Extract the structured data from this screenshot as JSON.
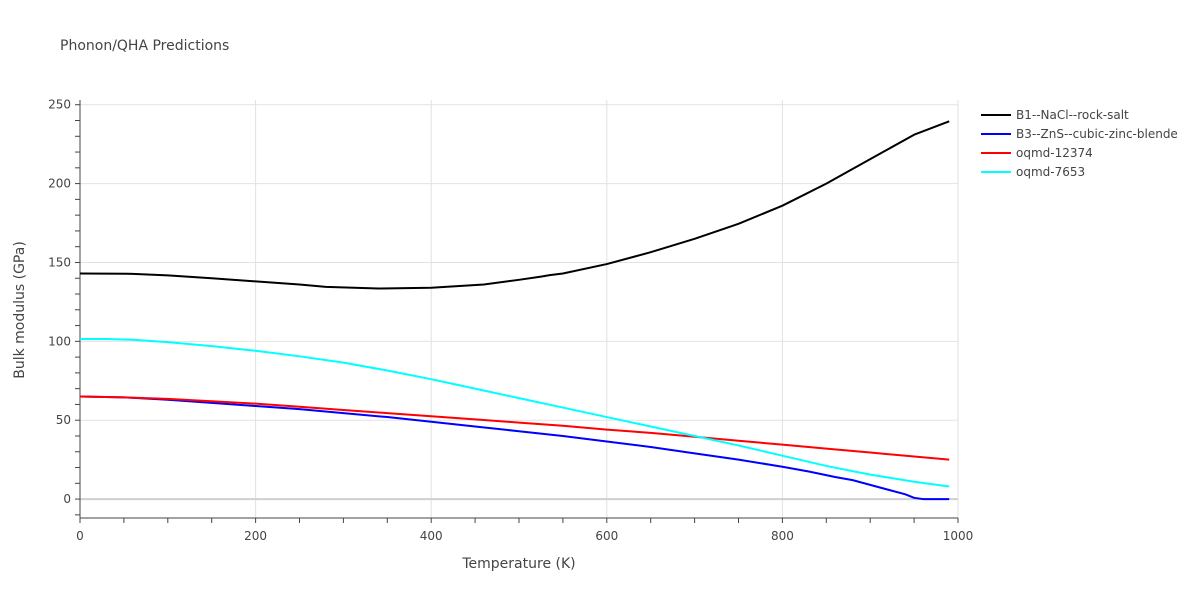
{
  "chart_data": {
    "type": "line",
    "title": "Phonon/QHA Predictions",
    "xlabel": "Temperature (K)",
    "ylabel": "Bulk modulus (GPa)",
    "xlim": [
      0,
      1000
    ],
    "ylim": [
      -12,
      253
    ],
    "x_ticks": [
      0,
      200,
      400,
      600,
      800,
      1000
    ],
    "y_ticks": [
      0,
      50,
      100,
      150,
      200,
      250
    ],
    "grid": true,
    "legend_position": "top-right, outside plot",
    "series": [
      {
        "name": "B1--NaCl--rock-salt",
        "color": "#000000",
        "x": [
          0,
          60,
          100,
          150,
          200,
          250,
          280,
          340,
          400,
          460,
          500,
          525,
          535,
          550,
          600,
          650,
          700,
          750,
          800,
          850,
          900,
          950,
          990
        ],
        "y": [
          143,
          142.8,
          141.8,
          140,
          138,
          136,
          134.5,
          133.5,
          134,
          136,
          139,
          141,
          142,
          143,
          149,
          156.5,
          165,
          174.5,
          186,
          200,
          215.5,
          231,
          239.5
        ]
      },
      {
        "name": "B3--ZnS--cubic-zinc-blende",
        "color": "#0000ff",
        "x": [
          0,
          50,
          100,
          150,
          200,
          250,
          300,
          350,
          400,
          450,
          500,
          550,
          600,
          650,
          700,
          750,
          800,
          830,
          860,
          880,
          900,
          920,
          940,
          950,
          960,
          980,
          990
        ],
        "y": [
          65,
          64.5,
          63,
          61,
          59,
          57,
          54.5,
          52,
          49,
          46,
          43,
          40,
          36.5,
          33,
          29,
          25,
          20.5,
          17.5,
          14,
          12,
          9,
          6,
          3,
          0.8,
          0,
          0,
          0
        ]
      },
      {
        "name": "oqmd-12374",
        "color": "#ff0000",
        "x": [
          0,
          50,
          100,
          150,
          200,
          250,
          300,
          350,
          400,
          450,
          500,
          550,
          600,
          650,
          700,
          750,
          800,
          850,
          900,
          950,
          990
        ],
        "y": [
          65,
          64.5,
          63.5,
          62,
          60.5,
          58.5,
          56.5,
          54.5,
          52.5,
          50.5,
          48.5,
          46.5,
          44,
          42,
          39.5,
          37,
          34.5,
          32,
          29.5,
          27,
          25
        ]
      },
      {
        "name": "oqmd-7653",
        "color": "#00ffff",
        "x": [
          0,
          30,
          60,
          100,
          150,
          200,
          250,
          300,
          350,
          400,
          450,
          500,
          550,
          600,
          650,
          700,
          750,
          800,
          850,
          900,
          950,
          990
        ],
        "y": [
          101.5,
          101.5,
          101,
          99.5,
          97,
          94,
          90.5,
          86.5,
          81.5,
          76,
          70,
          64,
          58,
          52,
          46,
          40,
          34,
          27.5,
          21,
          15.5,
          11,
          8
        ]
      }
    ]
  }
}
